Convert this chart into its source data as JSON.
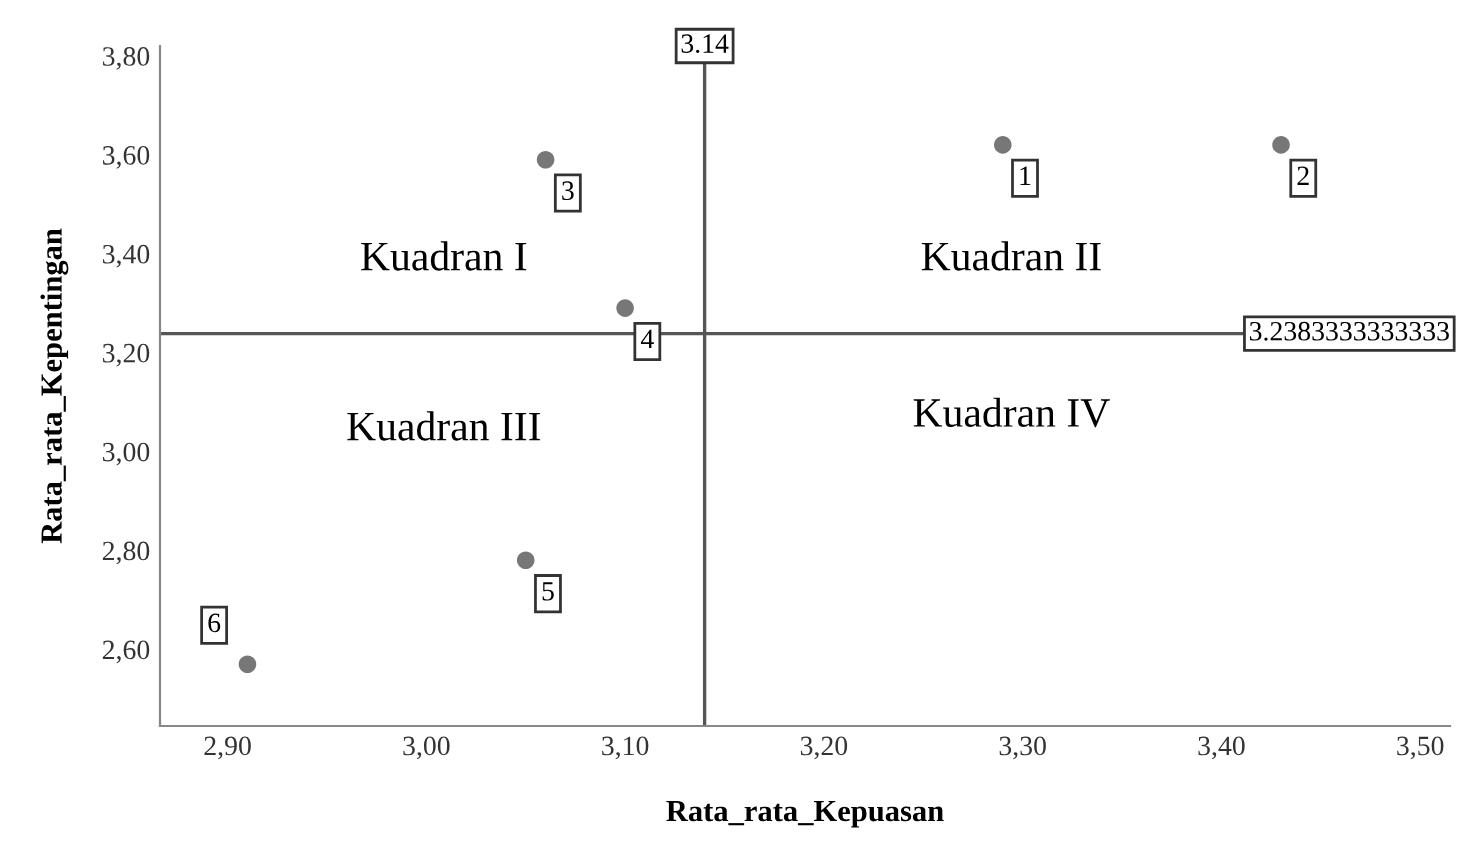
{
  "chart_data": {
    "type": "scatter",
    "xlabel": "Rata_rata_Kepuasan",
    "ylabel": "Rata_rata_Kepentingan",
    "x": [
      3.29,
      3.43,
      3.06,
      3.1,
      3.05,
      2.91
    ],
    "values": [
      3.62,
      3.62,
      3.59,
      3.29,
      2.78,
      2.57
    ],
    "color": "#777777",
    "marker": "circle",
    "xlim": [
      2.866,
      3.515
    ],
    "ylim": [
      2.445,
      3.82
    ],
    "xticks": [
      {
        "value": 2.9,
        "label": "2,90"
      },
      {
        "value": 3.0,
        "label": "3,00"
      },
      {
        "value": 3.1,
        "label": "3,10"
      },
      {
        "value": 3.2,
        "label": "3,20"
      },
      {
        "value": 3.3,
        "label": "3,30"
      },
      {
        "value": 3.4,
        "label": "3,40"
      },
      {
        "value": 3.5,
        "label": "3,50"
      }
    ],
    "yticks": [
      {
        "value": 2.6,
        "label": "2,60"
      },
      {
        "value": 2.8,
        "label": "2,80"
      },
      {
        "value": 3.0,
        "label": "3,00"
      },
      {
        "value": 3.2,
        "label": "3,20"
      },
      {
        "value": 3.4,
        "label": "3,40"
      },
      {
        "value": 3.6,
        "label": "3,60"
      },
      {
        "value": 3.8,
        "label": "3,80"
      }
    ],
    "ref_lines": [
      {
        "axis": "x",
        "value": 3.14,
        "label": "3.14",
        "color": "#555555"
      },
      {
        "axis": "y",
        "value": 3.2383333333333,
        "label": "3.2383333333333",
        "color": "#555555"
      }
    ],
    "annotations": [
      "Kuadran I",
      "Kuadran II",
      "Kuadran III",
      "Kuadran IV",
      {
        "text": "1",
        "x": 3.29,
        "y": 3.62
      },
      {
        "text": "2",
        "x": 3.43,
        "y": 3.62
      },
      {
        "text": "3",
        "x": 3.06,
        "y": 3.59
      },
      {
        "text": "4",
        "x": 3.1,
        "y": 3.29
      },
      {
        "text": "5",
        "x": 3.05,
        "y": 2.78
      },
      {
        "text": "6",
        "x": 2.91,
        "y": 2.57
      }
    ],
    "grid": false,
    "legend": false
  }
}
